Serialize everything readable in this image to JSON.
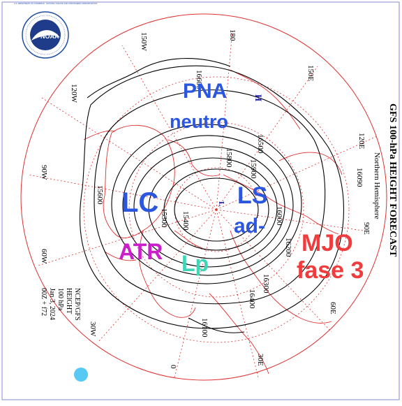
{
  "product": {
    "title": "GFS 100-hPa HEIGHT FORECAST",
    "subtitle": "Northern Hemisphere",
    "info": [
      "NCEP/GFS",
      "HEIGHT",
      "100 hPa",
      "Jan 3, 2024",
      "00Z + f72"
    ]
  },
  "logo": {
    "name": "NOAA",
    "ring_text": "U.S. DEPARTMENT OF COMMERCE · NATIONAL OCEANIC AND ATMOSPHERIC ADMINISTRATION"
  },
  "longitudes": [
    "180",
    "150W",
    "120W",
    "90W",
    "60W",
    "30W",
    "0",
    "30E",
    "60E",
    "90E",
    "120E",
    "150E"
  ],
  "contour_labels": [
    "16500",
    "15800",
    "15900",
    "16090",
    "16000",
    "16200",
    "16300",
    "16100",
    "15600",
    "15400",
    "15300",
    "16400",
    "16600"
  ],
  "pressure_centers": {
    "high": "H",
    "low": "L"
  },
  "annotations": [
    {
      "text": "PNA",
      "color": "#2a56e0"
    },
    {
      "text": "neutro",
      "color": "#2a56e0"
    },
    {
      "text": "LC",
      "color": "#2a56e0"
    },
    {
      "text": "LS",
      "color": "#2a56e0"
    },
    {
      "text": "ad-",
      "color": "#2a56e0"
    },
    {
      "text": "MJO",
      "color": "#f03c3c"
    },
    {
      "text": "fase 3",
      "color": "#f03c3c"
    },
    {
      "text": "ATR",
      "color": "#cc1fcc"
    },
    {
      "text": "Lp",
      "color": "#3fd6b8"
    }
  ],
  "colors": {
    "contour": "#000000",
    "geography": "#e03030",
    "dot": "#58c8f4",
    "frame": "#8a8ad0"
  }
}
